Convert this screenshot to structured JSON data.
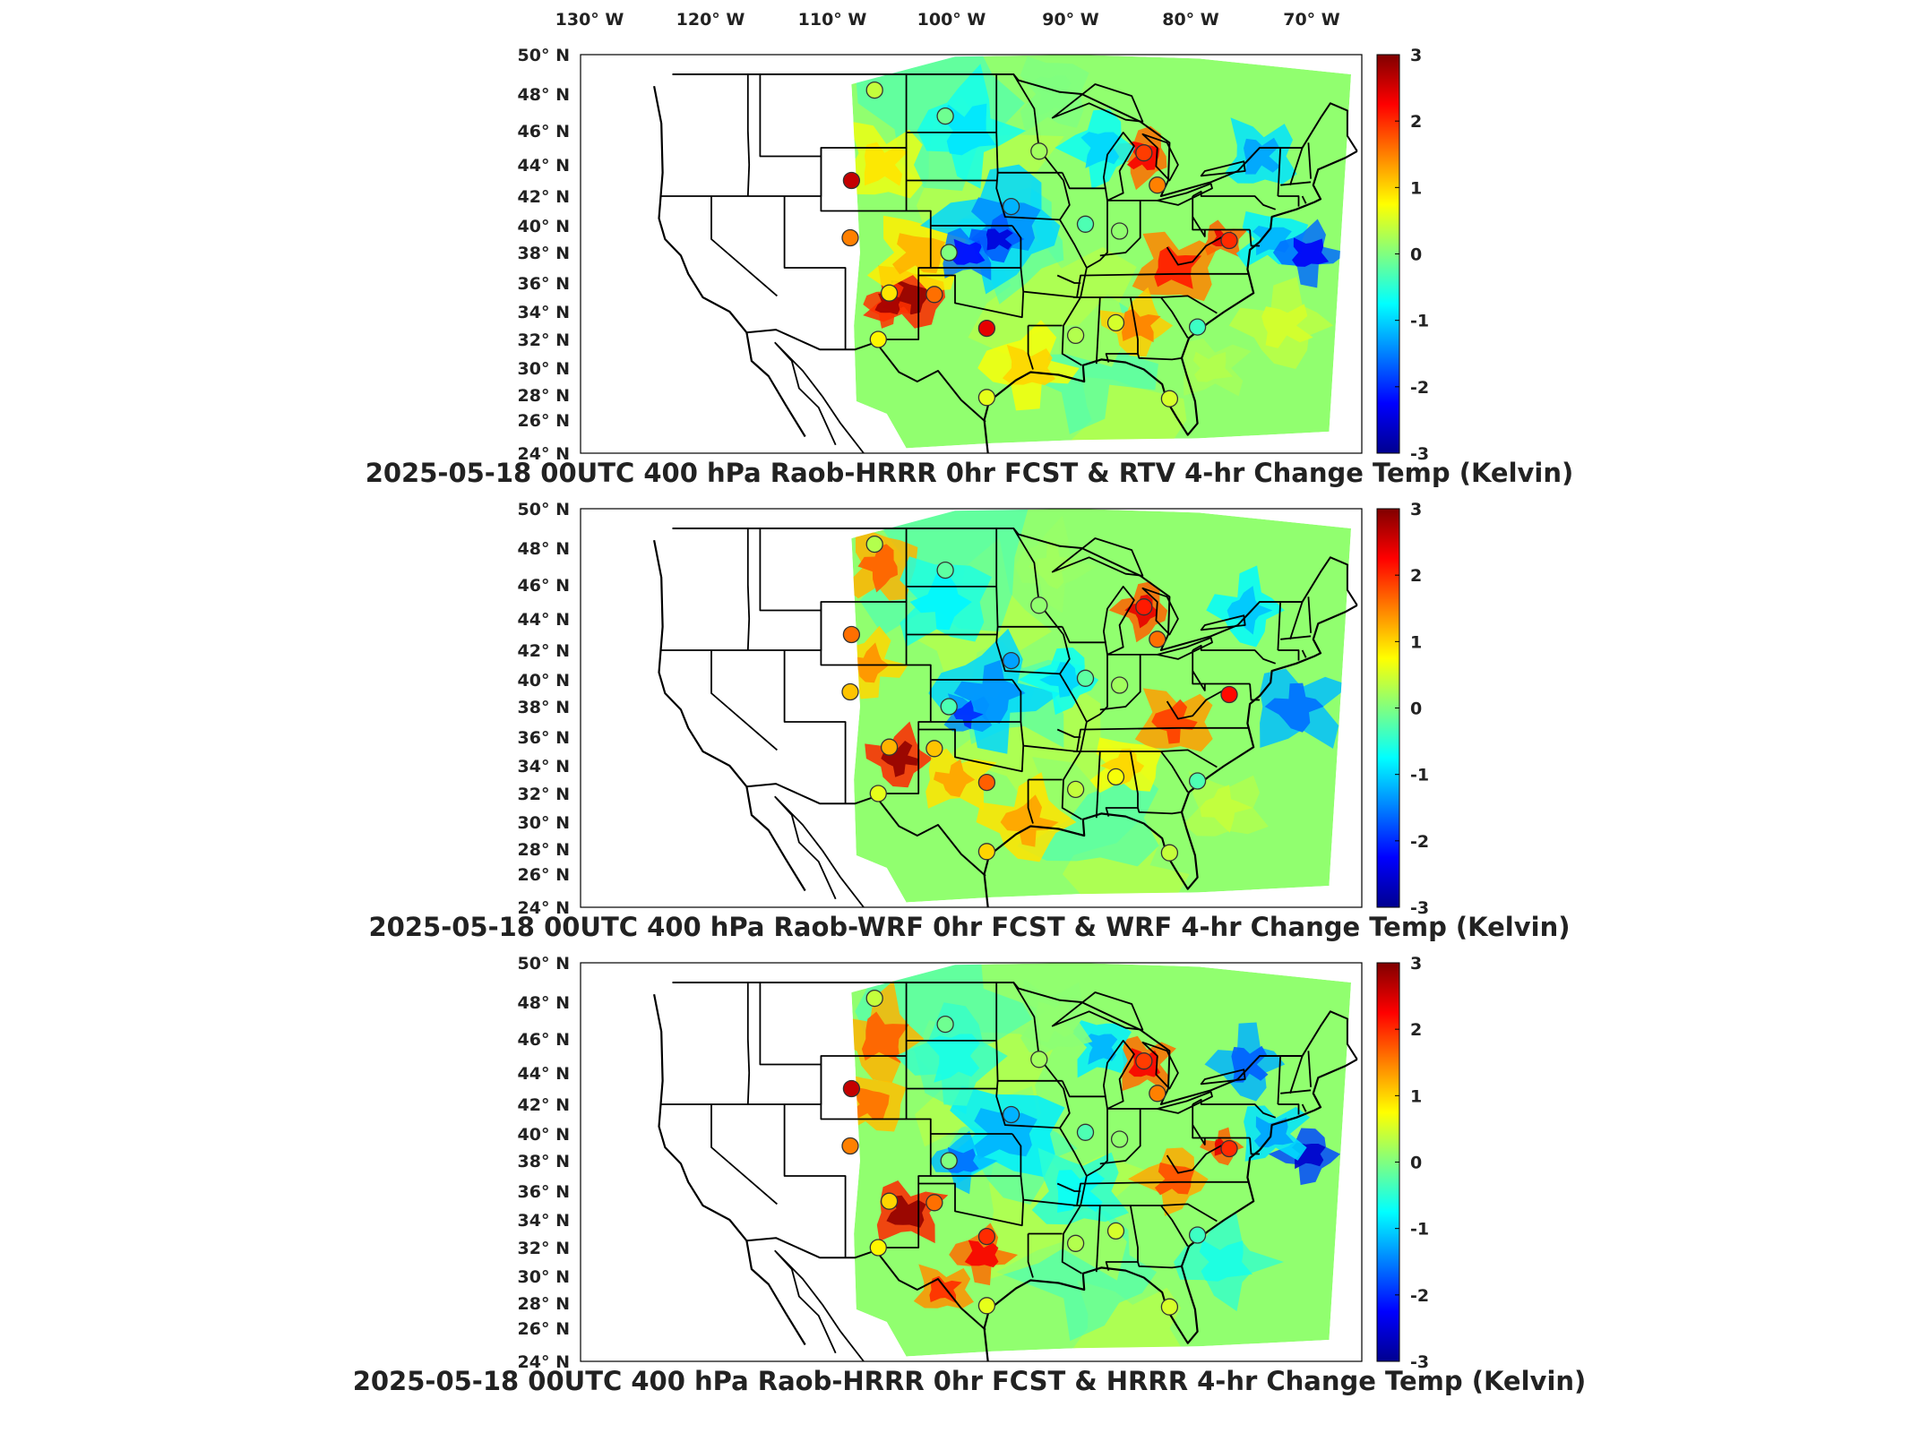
{
  "figure": {
    "lon_labels": [
      "130° W",
      "120° W",
      "110° W",
      "100° W",
      "90° W",
      "80° W",
      "70° W"
    ],
    "lat_labels": [
      "50° N",
      "48° N",
      "46° N",
      "44° N",
      "42° N",
      "40° N",
      "38° N",
      "36° N",
      "34° N",
      "32° N",
      "30° N",
      "28° N",
      "26° N",
      "24° N"
    ],
    "colorbar": {
      "min": -3,
      "max": 3,
      "ticks": [
        "3",
        "2",
        "1",
        "0",
        "-1",
        "-2",
        "-3"
      ]
    },
    "colormap": [
      "#00008f",
      "#0000ff",
      "#0080ff",
      "#00ffff",
      "#80ff80",
      "#ffff00",
      "#ff8000",
      "#ff0000",
      "#800000"
    ],
    "marker_outline": "#333333",
    "panels": [
      {
        "title": "2025-05-18 00UTC 400 hPa Raob-HRRR 0hr FCST & RTV 4-hr Change Temp (Kelvin)",
        "stations": [
          {
            "lon": -108.5,
            "lat": 43.0,
            "diff": 2.6
          },
          {
            "lon": -108.6,
            "lat": 39.1,
            "diff": 1.5
          },
          {
            "lon": -101.7,
            "lat": 35.2,
            "diff": 1.6
          },
          {
            "lon": -97.4,
            "lat": 32.8,
            "diff": 2.4
          },
          {
            "lon": -105.4,
            "lat": 35.3,
            "diff": 0.9
          },
          {
            "lon": -84.5,
            "lat": 44.7,
            "diff": 1.9
          },
          {
            "lon": -83.4,
            "lat": 42.7,
            "diff": 1.5
          },
          {
            "lon": -77.5,
            "lat": 38.9,
            "diff": 2.0
          },
          {
            "lon": -106.6,
            "lat": 48.2,
            "diff": 0.4
          },
          {
            "lon": -100.8,
            "lat": 46.8,
            "diff": -0.1
          },
          {
            "lon": -100.5,
            "lat": 38.0,
            "diff": 0.0
          },
          {
            "lon": -95.4,
            "lat": 41.3,
            "diff": -1.2
          },
          {
            "lon": -93.1,
            "lat": 44.8,
            "diff": 0.2
          },
          {
            "lon": -89.3,
            "lat": 40.1,
            "diff": -0.3
          },
          {
            "lon": -86.5,
            "lat": 39.6,
            "diff": 0.1
          },
          {
            "lon": -86.8,
            "lat": 33.2,
            "diff": 0.5
          },
          {
            "lon": -90.1,
            "lat": 32.3,
            "diff": 0.3
          },
          {
            "lon": -80.1,
            "lat": 32.9,
            "diff": -0.4
          },
          {
            "lon": -97.4,
            "lat": 27.8,
            "diff": 0.6
          },
          {
            "lon": -82.4,
            "lat": 27.7,
            "diff": 0.5
          },
          {
            "lon": -106.3,
            "lat": 32.0,
            "diff": 0.8
          }
        ]
      },
      {
        "title": "2025-05-18 00UTC 400 hPa Raob-WRF 0hr FCST & WRF 4-hr Change Temp (Kelvin)",
        "stations": [
          {
            "lon": -108.5,
            "lat": 43.0,
            "diff": 1.6
          },
          {
            "lon": -108.6,
            "lat": 39.1,
            "diff": 1.1
          },
          {
            "lon": -101.7,
            "lat": 35.2,
            "diff": 1.1
          },
          {
            "lon": -97.4,
            "lat": 32.8,
            "diff": 1.7
          },
          {
            "lon": -105.4,
            "lat": 35.3,
            "diff": 1.2
          },
          {
            "lon": -84.5,
            "lat": 44.7,
            "diff": 2.1
          },
          {
            "lon": -83.4,
            "lat": 42.7,
            "diff": 1.6
          },
          {
            "lon": -77.5,
            "lat": 38.9,
            "diff": 2.2
          },
          {
            "lon": -106.6,
            "lat": 48.2,
            "diff": 0.3
          },
          {
            "lon": -100.8,
            "lat": 46.8,
            "diff": -0.2
          },
          {
            "lon": -100.5,
            "lat": 38.0,
            "diff": -0.3
          },
          {
            "lon": -95.4,
            "lat": 41.3,
            "diff": -1.3
          },
          {
            "lon": -93.1,
            "lat": 44.8,
            "diff": 0.1
          },
          {
            "lon": -89.3,
            "lat": 40.1,
            "diff": -0.2
          },
          {
            "lon": -86.5,
            "lat": 39.6,
            "diff": 0.2
          },
          {
            "lon": -86.8,
            "lat": 33.2,
            "diff": 0.7
          },
          {
            "lon": -90.1,
            "lat": 32.3,
            "diff": 0.4
          },
          {
            "lon": -80.1,
            "lat": 32.9,
            "diff": -0.3
          },
          {
            "lon": -97.4,
            "lat": 27.8,
            "diff": 1.0
          },
          {
            "lon": -82.4,
            "lat": 27.7,
            "diff": 0.4
          },
          {
            "lon": -106.3,
            "lat": 32.0,
            "diff": 0.6
          }
        ]
      },
      {
        "title": "2025-05-18 00UTC 400 hPa Raob-HRRR 0hr FCST & HRRR 4-hr Change Temp (Kelvin)",
        "stations": [
          {
            "lon": -108.5,
            "lat": 43.0,
            "diff": 2.6
          },
          {
            "lon": -108.6,
            "lat": 39.1,
            "diff": 1.5
          },
          {
            "lon": -101.7,
            "lat": 35.2,
            "diff": 1.6
          },
          {
            "lon": -97.4,
            "lat": 32.8,
            "diff": 2.0
          },
          {
            "lon": -105.4,
            "lat": 35.3,
            "diff": 1.0
          },
          {
            "lon": -84.5,
            "lat": 44.7,
            "diff": 1.9
          },
          {
            "lon": -83.4,
            "lat": 42.7,
            "diff": 1.5
          },
          {
            "lon": -77.5,
            "lat": 38.9,
            "diff": 2.0
          },
          {
            "lon": -106.6,
            "lat": 48.2,
            "diff": 0.4
          },
          {
            "lon": -100.8,
            "lat": 46.8,
            "diff": -0.1
          },
          {
            "lon": -100.5,
            "lat": 38.0,
            "diff": 0.0
          },
          {
            "lon": -95.4,
            "lat": 41.3,
            "diff": -1.2
          },
          {
            "lon": -93.1,
            "lat": 44.8,
            "diff": 0.2
          },
          {
            "lon": -89.3,
            "lat": 40.1,
            "diff": -0.3
          },
          {
            "lon": -86.5,
            "lat": 39.6,
            "diff": 0.1
          },
          {
            "lon": -86.8,
            "lat": 33.2,
            "diff": 0.5
          },
          {
            "lon": -90.1,
            "lat": 32.3,
            "diff": 0.3
          },
          {
            "lon": -80.1,
            "lat": 32.9,
            "diff": -0.4
          },
          {
            "lon": -97.4,
            "lat": 27.8,
            "diff": 0.6
          },
          {
            "lon": -82.4,
            "lat": 27.7,
            "diff": 0.5
          },
          {
            "lon": -106.3,
            "lat": 32.0,
            "diff": 0.8
          }
        ]
      }
    ]
  }
}
